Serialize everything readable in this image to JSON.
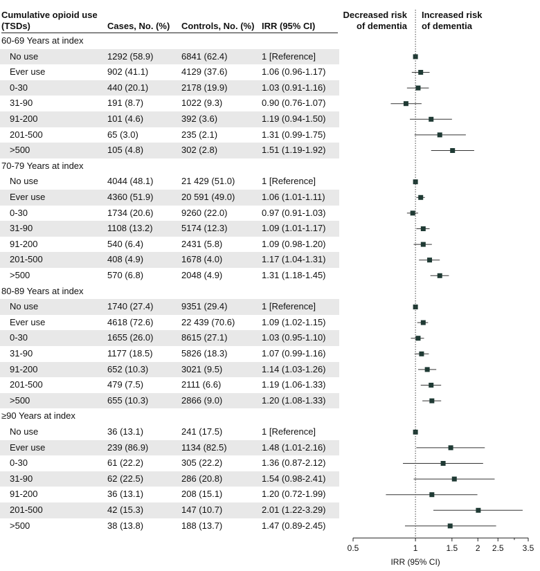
{
  "header": {
    "col_exposure": [
      "Cumulative opioid use",
      "(TSDs)"
    ],
    "col_cases": "Cases, No. (%)",
    "col_controls": "Controls, No. (%)",
    "col_irr": "IRR (95% CI)",
    "decreased": [
      "Decreased risk",
      "of dementia"
    ],
    "increased": [
      "Increased risk",
      "of dementia"
    ]
  },
  "rows": [
    {
      "type": "group",
      "label": "60-69 Years at index"
    },
    {
      "type": "data",
      "label": "No use",
      "cases": "1292 (58.9)",
      "controls": "6841 (62.4)",
      "irr_text": "1 [Reference]",
      "irr": 1.0,
      "lo": null,
      "hi": null
    },
    {
      "type": "data",
      "label": "Ever use",
      "cases": "902 (41.1)",
      "controls": "4129 (37.6)",
      "irr_text": "1.06 (0.96-1.17)",
      "irr": 1.06,
      "lo": 0.96,
      "hi": 1.17
    },
    {
      "type": "data",
      "label": "0-30",
      "cases": "440 (20.1)",
      "controls": "2178 (19.9)",
      "irr_text": "1.03 (0.91-1.16)",
      "irr": 1.03,
      "lo": 0.91,
      "hi": 1.16
    },
    {
      "type": "data",
      "label": "31-90",
      "cases": "191 (8.7)",
      "controls": "1022 (9.3)",
      "irr_text": "0.90 (0.76-1.07)",
      "irr": 0.9,
      "lo": 0.76,
      "hi": 1.07
    },
    {
      "type": "data",
      "label": "91-200",
      "cases": "101 (4.6)",
      "controls": "392 (3.6)",
      "irr_text": "1.19 (0.94-1.50)",
      "irr": 1.19,
      "lo": 0.94,
      "hi": 1.5
    },
    {
      "type": "data",
      "label": "201-500",
      "cases": "65 (3.0)",
      "controls": "235 (2.1)",
      "irr_text": "1.31 (0.99-1.75)",
      "irr": 1.31,
      "lo": 0.99,
      "hi": 1.75
    },
    {
      "type": "data",
      "label": ">500",
      "cases": "105 (4.8)",
      "controls": "302 (2.8)",
      "irr_text": "1.51 (1.19-1.92)",
      "irr": 1.51,
      "lo": 1.19,
      "hi": 1.92
    },
    {
      "type": "group",
      "label": "70-79 Years at index"
    },
    {
      "type": "data",
      "label": "No use",
      "cases": "4044 (48.1)",
      "controls": "21 429 (51.0)",
      "irr_text": "1 [Reference]",
      "irr": 1.0,
      "lo": null,
      "hi": null
    },
    {
      "type": "data",
      "label": "Ever use",
      "cases": "4360 (51.9)",
      "controls": "20 591 (49.0)",
      "irr_text": "1.06 (1.01-1.11)",
      "irr": 1.06,
      "lo": 1.01,
      "hi": 1.11
    },
    {
      "type": "data",
      "label": "0-30",
      "cases": "1734 (20.6)",
      "controls": "9260 (22.0)",
      "irr_text": "0.97 (0.91-1.03)",
      "irr": 0.97,
      "lo": 0.91,
      "hi": 1.03
    },
    {
      "type": "data",
      "label": "31-90",
      "cases": "1108 (13.2)",
      "controls": "5174 (12.3)",
      "irr_text": "1.09 (1.01-1.17)",
      "irr": 1.09,
      "lo": 1.01,
      "hi": 1.17
    },
    {
      "type": "data",
      "label": "91-200",
      "cases": "540 (6.4)",
      "controls": "2431 (5.8)",
      "irr_text": "1.09 (0.98-1.20)",
      "irr": 1.09,
      "lo": 0.98,
      "hi": 1.2
    },
    {
      "type": "data",
      "label": "201-500",
      "cases": "408 (4.9)",
      "controls": "1678 (4.0)",
      "irr_text": "1.17 (1.04-1.31)",
      "irr": 1.17,
      "lo": 1.04,
      "hi": 1.31
    },
    {
      "type": "data",
      "label": ">500",
      "cases": "570 (6.8)",
      "controls": "2048 (4.9)",
      "irr_text": "1.31 (1.18-1.45)",
      "irr": 1.31,
      "lo": 1.18,
      "hi": 1.45
    },
    {
      "type": "group",
      "label": "80-89 Years at index"
    },
    {
      "type": "data",
      "label": "No use",
      "cases": "1740 (27.4)",
      "controls": "9351 (29.4)",
      "irr_text": "1 [Reference]",
      "irr": 1.0,
      "lo": null,
      "hi": null
    },
    {
      "type": "data",
      "label": "Ever use",
      "cases": "4618 (72.6)",
      "controls": "22 439 (70.6)",
      "irr_text": "1.09 (1.02-1.15)",
      "irr": 1.09,
      "lo": 1.02,
      "hi": 1.15
    },
    {
      "type": "data",
      "label": "0-30",
      "cases": "1655 (26.0)",
      "controls": "8615 (27.1)",
      "irr_text": "1.03 (0.95-1.10)",
      "irr": 1.03,
      "lo": 0.95,
      "hi": 1.1
    },
    {
      "type": "data",
      "label": "31-90",
      "cases": "1177 (18.5)",
      "controls": "5826 (18.3)",
      "irr_text": "1.07 (0.99-1.16)",
      "irr": 1.07,
      "lo": 0.99,
      "hi": 1.16
    },
    {
      "type": "data",
      "label": "91-200",
      "cases": "652 (10.3)",
      "controls": "3021 (9.5)",
      "irr_text": "1.14 (1.03-1.26)",
      "irr": 1.14,
      "lo": 1.03,
      "hi": 1.26
    },
    {
      "type": "data",
      "label": "201-500",
      "cases": "479 (7.5)",
      "controls": "2111 (6.6)",
      "irr_text": "1.19 (1.06-1.33)",
      "irr": 1.19,
      "lo": 1.06,
      "hi": 1.33
    },
    {
      "type": "data",
      "label": ">500",
      "cases": "655 (10.3)",
      "controls": "2866 (9.0)",
      "irr_text": "1.20 (1.08-1.33)",
      "irr": 1.2,
      "lo": 1.08,
      "hi": 1.33
    },
    {
      "type": "group",
      "label": "≥90 Years at index"
    },
    {
      "type": "data",
      "label": "No use",
      "cases": "36 (13.1)",
      "controls": "241 (17.5)",
      "irr_text": "1 [Reference]",
      "irr": 1.0,
      "lo": null,
      "hi": null
    },
    {
      "type": "data",
      "label": "Ever use",
      "cases": "239 (86.9)",
      "controls": "1134 (82.5)",
      "irr_text": "1.48 (1.01-2.16)",
      "irr": 1.48,
      "lo": 1.01,
      "hi": 2.16
    },
    {
      "type": "data",
      "label": "0-30",
      "cases": "61 (22.2)",
      "controls": "305 (22.2)",
      "irr_text": "1.36 (0.87-2.12)",
      "irr": 1.36,
      "lo": 0.87,
      "hi": 2.12
    },
    {
      "type": "data",
      "label": "31-90",
      "cases": "62 (22.5)",
      "controls": "286 (20.8)",
      "irr_text": "1.54 (0.98-2.41)",
      "irr": 1.54,
      "lo": 0.98,
      "hi": 2.41
    },
    {
      "type": "data",
      "label": "91-200",
      "cases": "36 (13.1)",
      "controls": "208 (15.1)",
      "irr_text": "1.20 (0.72-1.99)",
      "irr": 1.2,
      "lo": 0.72,
      "hi": 1.99
    },
    {
      "type": "data",
      "label": "201-500",
      "cases": "42 (15.3)",
      "controls": "147 (10.7)",
      "irr_text": "2.01 (1.22-3.29)",
      "irr": 2.01,
      "lo": 1.22,
      "hi": 3.29
    },
    {
      "type": "data",
      "label": ">500",
      "cases": "38 (13.8)",
      "controls": "188 (13.7)",
      "irr_text": "1.47 (0.89-2.45)",
      "irr": 1.47,
      "lo": 0.89,
      "hi": 2.45
    }
  ],
  "chart_data": {
    "type": "scatter",
    "title": "",
    "xlabel": "IRR (95% CI)",
    "xscale": "log",
    "xlim": [
      0.5,
      3.5
    ],
    "xticks": [
      0.5,
      1,
      1.5,
      2,
      2.5,
      3.5
    ],
    "xtick_labels": [
      "0.5",
      "1",
      "1.5",
      "2",
      "2.5",
      "3.5"
    ],
    "minor_xticks": [
      3
    ],
    "reference_line": 1,
    "left_annotation": "Decreased risk of dementia",
    "right_annotation": "Increased risk of dementia"
  },
  "colors": {
    "marker": "#1f3a34",
    "ci_line": "#333333",
    "ref_line": "#444444",
    "shade": "#e8e8e8"
  }
}
